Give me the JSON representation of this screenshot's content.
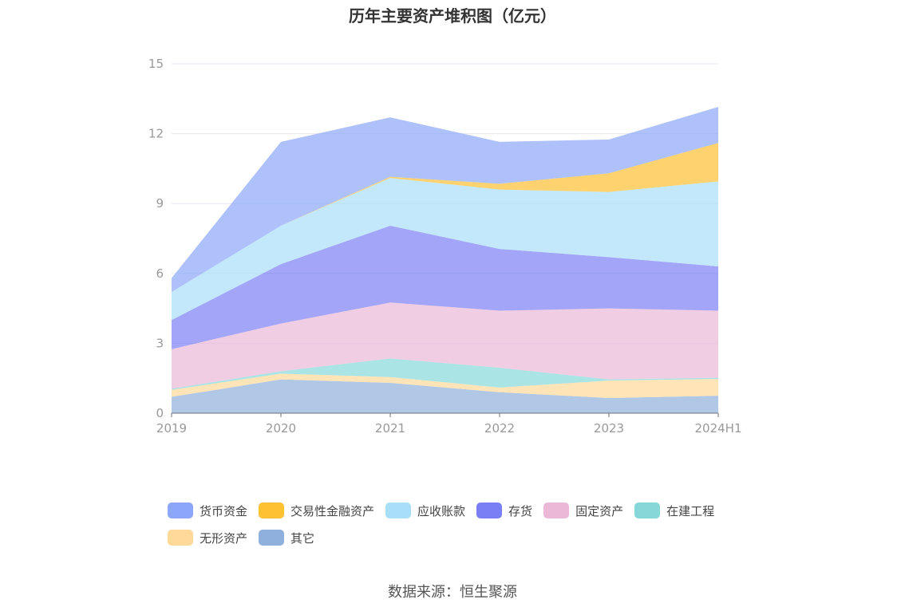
{
  "chart_data": {
    "type": "area",
    "stacked": true,
    "title": "历年主要资产堆积图（亿元）",
    "x": [
      "2019",
      "2020",
      "2021",
      "2022",
      "2023",
      "2024H1"
    ],
    "yticks": [
      "0",
      "3",
      "6",
      "9",
      "12",
      "15"
    ],
    "ylim": [
      0,
      15
    ],
    "grid": true,
    "legend_position": "bottom",
    "series": [
      {
        "name": "其它",
        "color": "#8fb0dc",
        "values": [
          0.7,
          1.45,
          1.3,
          0.9,
          0.65,
          0.75
        ]
      },
      {
        "name": "无形资产",
        "color": "#ffd999",
        "values": [
          0.3,
          0.25,
          0.25,
          0.2,
          0.75,
          0.72
        ]
      },
      {
        "name": "在建工程",
        "color": "#86d8d8",
        "values": [
          0.05,
          0.1,
          0.8,
          0.85,
          0.05,
          0.05
        ]
      },
      {
        "name": "固定资产",
        "color": "#ebb8d8",
        "values": [
          1.7,
          2.05,
          2.4,
          2.45,
          3.05,
          2.88
        ]
      },
      {
        "name": "存货",
        "color": "#7b7ff5",
        "values": [
          1.25,
          2.55,
          3.3,
          2.65,
          2.2,
          1.9
        ]
      },
      {
        "name": "应收账款",
        "color": "#a9def9",
        "values": [
          1.2,
          1.65,
          2.05,
          2.55,
          2.8,
          3.65
        ]
      },
      {
        "name": "交易性金融资产",
        "color": "#fec132",
        "values": [
          0,
          0,
          0.05,
          0.25,
          0.8,
          1.65
        ]
      },
      {
        "name": "货币资金",
        "color": "#8ba6fa",
        "values": [
          0.6,
          3.6,
          2.55,
          1.8,
          1.45,
          1.55
        ]
      }
    ]
  },
  "legend_order": [
    "货币资金",
    "交易性金融资产",
    "应收账款",
    "存货",
    "固定资产",
    "在建工程",
    "无形资产",
    "其它"
  ],
  "source": "数据来源：恒生聚源"
}
